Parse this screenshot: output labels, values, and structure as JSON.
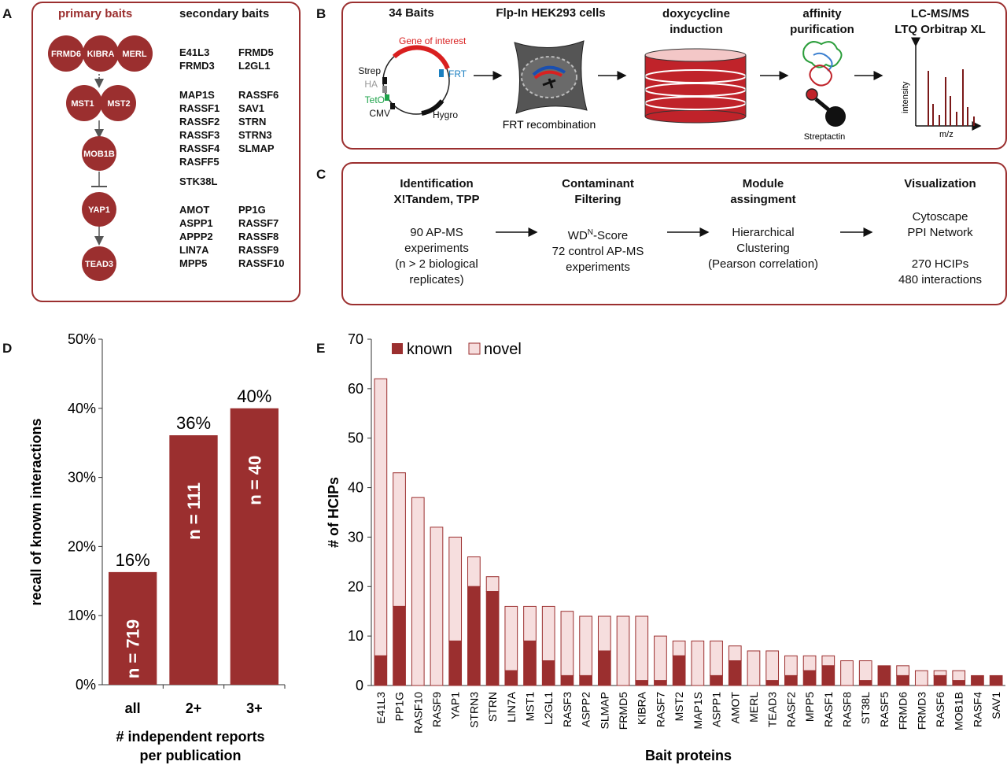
{
  "colors": {
    "dark_red": "#9b2f2f",
    "light_red": "#f6dede",
    "black": "#111111"
  },
  "panel_letters": {
    "a": "A",
    "b": "B",
    "c": "C",
    "d": "D",
    "e": "E"
  },
  "panel_a": {
    "primary_title": "primary baits",
    "secondary_title": "secondary baits",
    "nodes": {
      "frmd6": "FRMD6",
      "kibra": "KIBRA",
      "merl": "MERL",
      "mst1": "MST1",
      "mst2": "MST2",
      "mob1b": "MOB1B",
      "yap1": "YAP1",
      "tead3": "TEAD3"
    },
    "groups": [
      {
        "col1": [
          "E41L3",
          "FRMD3"
        ],
        "col2": [
          "FRMD5",
          "L2GL1"
        ]
      },
      {
        "col1": [
          "MAP1S",
          "RASSF1",
          "RASSF2",
          "RASSF3",
          "RASSF4",
          "RASFF5"
        ],
        "col2": [
          "RASSF6",
          "SAV1",
          "STRN",
          "STRN3",
          "SLMAP"
        ]
      },
      {
        "col1": [
          "STK38L"
        ],
        "col2": []
      },
      {
        "col1": [
          "AMOT",
          "ASPP1",
          "APPP2",
          "LIN7A",
          "MPP5"
        ],
        "col2": [
          "PP1G",
          "RASSF7",
          "RASSF8",
          "RASSF9",
          "RASSF10"
        ]
      }
    ]
  },
  "panel_b": {
    "steps": [
      {
        "title_l1": "34 Baits",
        "title_l2": ""
      },
      {
        "title_l1": "Flp-In HEK293 cells",
        "title_l2": ""
      },
      {
        "title_l1": "doxycycline",
        "title_l2": "induction"
      },
      {
        "title_l1": "affinity",
        "title_l2": "purification"
      },
      {
        "title_l1": "LC-MS/MS",
        "title_l2": "LTQ Orbitrap XL"
      }
    ],
    "plasmid": {
      "gene": "Gene of interest",
      "frt": "FRT",
      "strep": "Strep",
      "ha": "HA",
      "teto": "TetO",
      "cmv": "CMV",
      "hygro": "Hygro"
    },
    "frt_recombination": "FRT recombination",
    "streptactin": "Streptactin",
    "spectrum": {
      "ylabel": "intensity",
      "xlabel": "m/z"
    }
  },
  "panel_c": {
    "cols": [
      {
        "h1": "Identification",
        "h2": "X!Tandem, TPP",
        "lines": [
          "90 AP-MS",
          "experiments",
          "(n > 2 biological",
          "replicates)"
        ]
      },
      {
        "h1": "Contaminant",
        "h2": "Filtering",
        "wd_pre": "WD",
        "wd_sup": "N",
        "wd_post": "-Score",
        "lines": [
          "72 control AP-MS",
          "experiments"
        ]
      },
      {
        "h1": "Module",
        "h2": "assingment",
        "lines": [
          "Hierarchical",
          "Clustering",
          "(Pearson correlation)"
        ]
      },
      {
        "h1": "Visualization",
        "h2": "",
        "lines": [
          "Cytoscape",
          "PPI Network",
          "",
          "270 HCIPs",
          "480 interactions"
        ]
      }
    ]
  },
  "chart_d": {
    "type": "bar",
    "categories": [
      "all",
      "2+",
      "3+"
    ],
    "values": [
      16.3,
      36.1,
      40.0
    ],
    "value_labels": [
      "16%",
      "36%",
      "40%"
    ],
    "n_labels": [
      "n = 719",
      "n = 111",
      "n = 40"
    ],
    "ylabel": "recall of known interactions",
    "xlabel_l1": "# independent reports",
    "xlabel_l2": "per publication",
    "ylim": [
      0,
      50
    ],
    "yticks": [
      "0%",
      "10%",
      "20%",
      "30%",
      "40%",
      "50%"
    ]
  },
  "chart_data": {
    "type": "bar",
    "stacked": true,
    "categories": [
      "E41L3",
      "PP1G",
      "RASF10",
      "RASF9",
      "YAP1",
      "STRN3",
      "STRN",
      "LIN7A",
      "MST1",
      "L2GL1",
      "RASF3",
      "ASPP2",
      "SLMAP",
      "FRMD5",
      "KIBRA",
      "RASF7",
      "MST2",
      "MAP1S",
      "ASPP1",
      "AMOT",
      "MERL",
      "TEAD3",
      "RASF2",
      "MPP5",
      "RASF1",
      "RASF8",
      "ST38L",
      "RASF5",
      "FRMD6",
      "FRMD3",
      "RASF6",
      "MOB1B",
      "RASF4",
      "SAV1"
    ],
    "series": [
      {
        "name": "known",
        "values": [
          6,
          16,
          0,
          0,
          9,
          20,
          19,
          3,
          9,
          5,
          2,
          2,
          7,
          0,
          1,
          1,
          6,
          0,
          2,
          5,
          0,
          1,
          2,
          3,
          4,
          0,
          1,
          4,
          2,
          0,
          2,
          1,
          2,
          2
        ]
      },
      {
        "name": "novel",
        "values": [
          56,
          27,
          38,
          32,
          21,
          6,
          3,
          13,
          7,
          11,
          13,
          12,
          7,
          14,
          13,
          9,
          3,
          9,
          7,
          3,
          7,
          6,
          4,
          3,
          2,
          5,
          4,
          0,
          2,
          3,
          1,
          2,
          0,
          0
        ]
      }
    ],
    "ylabel": "# of HCIPs",
    "xlabel": "Bait proteins",
    "ylim": [
      0,
      70
    ],
    "yticks": [
      "0",
      "10",
      "20",
      "30",
      "40",
      "50",
      "60",
      "70"
    ],
    "legend": "top-left"
  }
}
